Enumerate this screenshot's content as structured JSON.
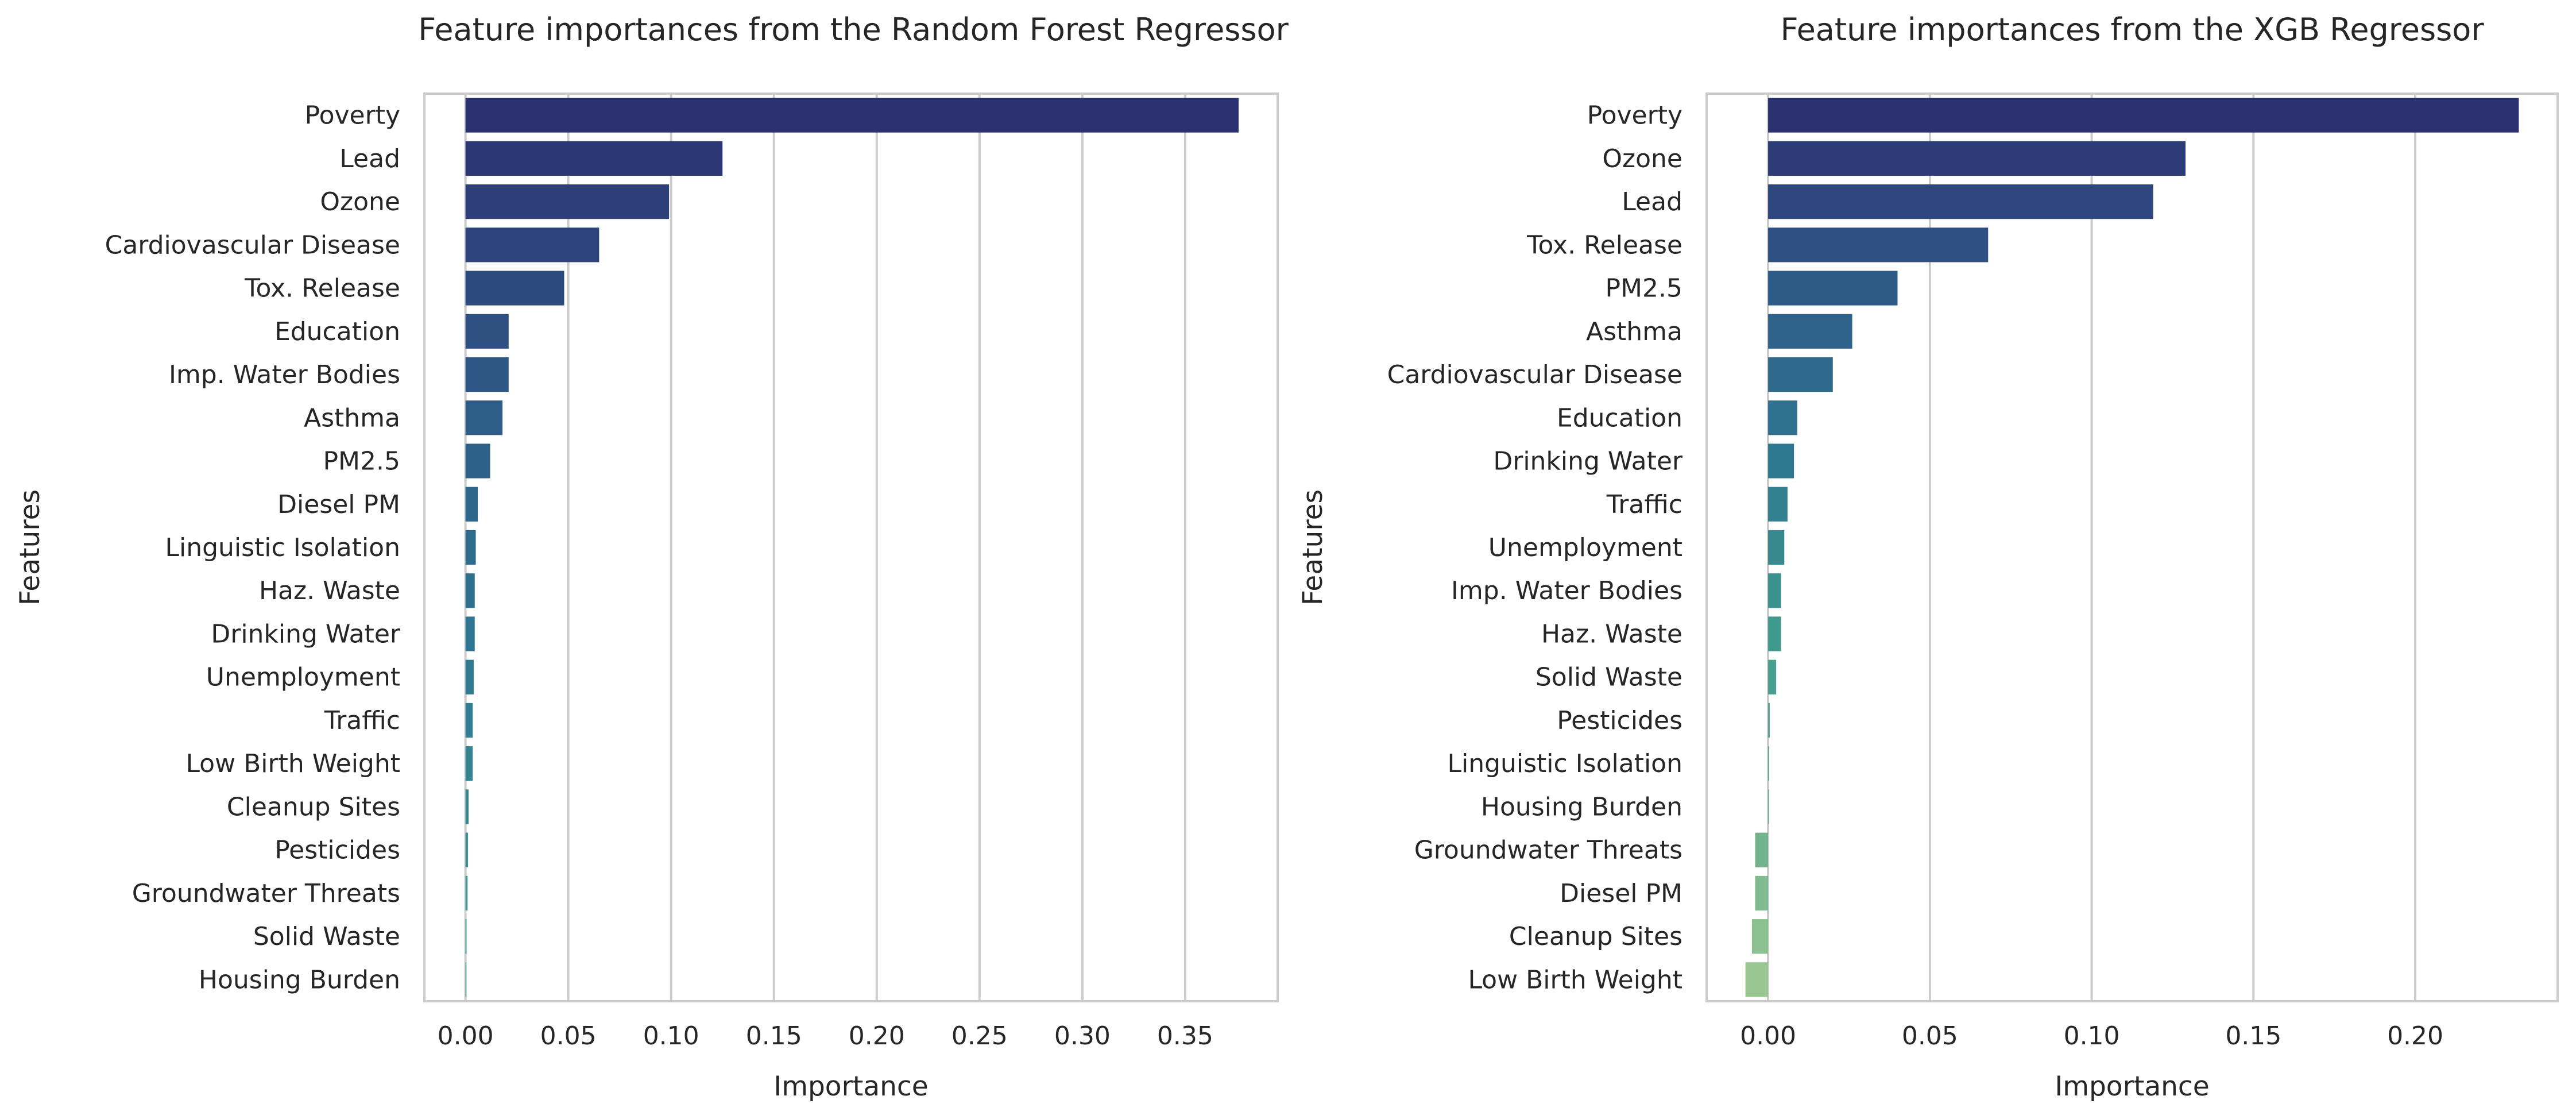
{
  "chart_data": [
    {
      "type": "bar",
      "orientation": "horizontal",
      "title": "Feature importances from the Random Forest Regressor",
      "xlabel": "Importance",
      "ylabel": "Features",
      "xlim": [
        -0.02,
        0.395
      ],
      "xticks": [
        0.0,
        0.05,
        0.1,
        0.15,
        0.2,
        0.25,
        0.3,
        0.35
      ],
      "xtick_labels": [
        "0.00",
        "0.05",
        "0.10",
        "0.15",
        "0.20",
        "0.25",
        "0.30",
        "0.35"
      ],
      "grid": "vertical",
      "palette": "crest",
      "categories": [
        "Poverty",
        "Lead",
        "Ozone",
        "Cardiovascular Disease",
        "Tox. Release",
        "Education",
        "Imp. Water Bodies",
        "Asthma",
        "PM2.5",
        "Diesel PM",
        "Linguistic Isolation",
        "Haz. Waste",
        "Drinking Water",
        "Unemployment",
        "Traffic",
        "Low Birth Weight",
        "Cleanup Sites",
        "Pesticides",
        "Groundwater Threats",
        "Solid Waste",
        "Housing Burden"
      ],
      "values": [
        0.376,
        0.125,
        0.099,
        0.065,
        0.048,
        0.021,
        0.021,
        0.018,
        0.012,
        0.006,
        0.005,
        0.0045,
        0.0045,
        0.004,
        0.0035,
        0.0035,
        0.0015,
        0.0012,
        0.001,
        0.0005,
        0.0003
      ]
    },
    {
      "type": "bar",
      "orientation": "horizontal",
      "title": "Feature importances from the XGB Regressor",
      "xlabel": "Importance",
      "ylabel": "Features",
      "xlim": [
        -0.019,
        0.244
      ],
      "xticks": [
        0.0,
        0.05,
        0.1,
        0.15,
        0.2
      ],
      "xtick_labels": [
        "0.00",
        "0.05",
        "0.10",
        "0.15",
        "0.20"
      ],
      "grid": "vertical",
      "palette": "crest",
      "categories": [
        "Poverty",
        "Ozone",
        "Lead",
        "Tox. Release",
        "PM2.5",
        "Asthma",
        "Cardiovascular Disease",
        "Education",
        "Drinking Water",
        "Traffic",
        "Unemployment",
        "Imp. Water Bodies",
        "Haz. Waste",
        "Solid Waste",
        "Pesticides",
        "Linguistic Isolation",
        "Housing Burden",
        "Groundwater Threats",
        "Diesel PM",
        "Cleanup Sites",
        "Low Birth Weight"
      ],
      "values": [
        0.232,
        0.129,
        0.119,
        0.068,
        0.04,
        0.026,
        0.02,
        0.009,
        0.008,
        0.006,
        0.005,
        0.004,
        0.004,
        0.0025,
        0.0005,
        0.0003,
        0.0002,
        -0.004,
        -0.004,
        -0.005,
        -0.007
      ]
    }
  ],
  "colors": {
    "palette_stops": [
      "#2c3172",
      "#2e5a87",
      "#2f7891",
      "#3e9a8d",
      "#65ac8c",
      "#9ac791"
    ],
    "grid": "#cccccc",
    "text": "#262626",
    "background": "#ffffff"
  }
}
